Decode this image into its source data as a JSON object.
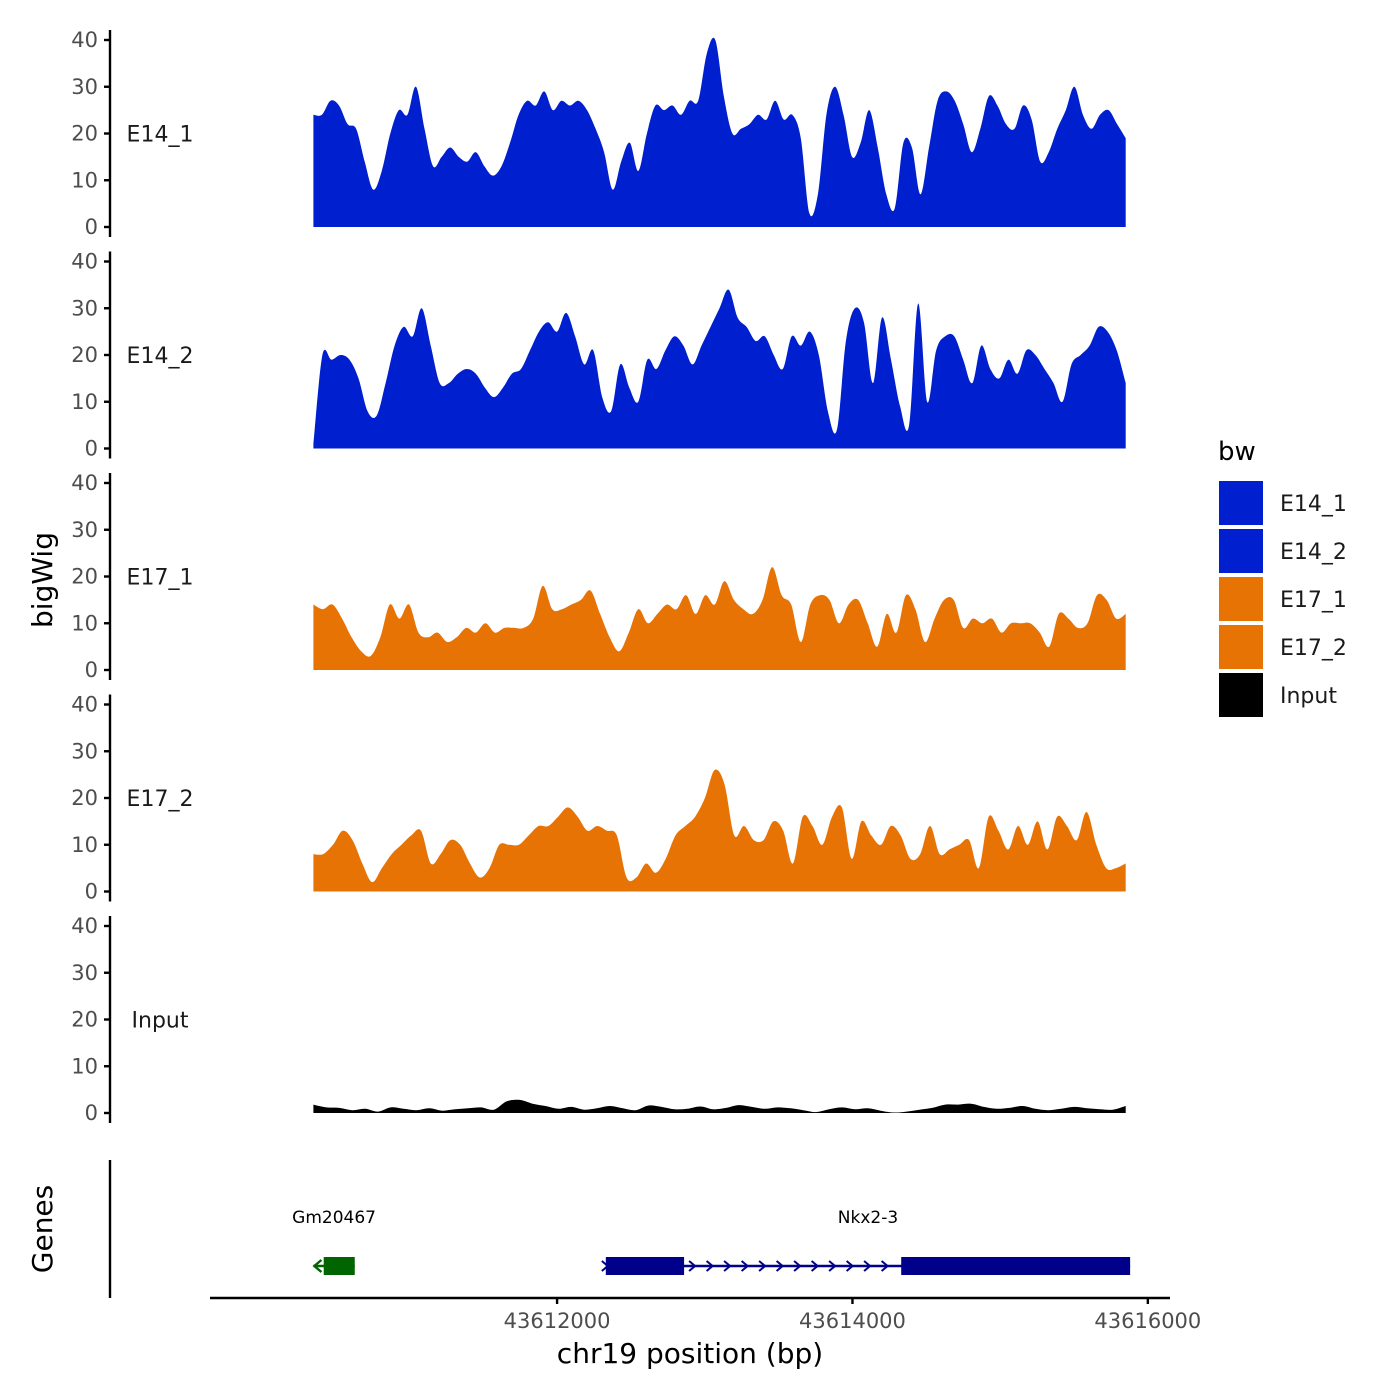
{
  "chart_data": {
    "type": "area",
    "ylabel": "bigWig",
    "xlabel": "chr19 position (bp)",
    "ylim": [
      0,
      40
    ],
    "y_ticks": [
      0,
      10,
      20,
      30,
      40
    ],
    "xlim": [
      43609650,
      43616150
    ],
    "x_ticks": [
      43612000,
      43614000,
      43616000
    ],
    "x_tick_labels": [
      "43612000",
      "43614000",
      "43616000"
    ],
    "x_start": 43610350,
    "x_end": 43615850,
    "legend": {
      "title": "bw",
      "position": "right",
      "entries": [
        {
          "label": "E14_1",
          "color": "#0020D0"
        },
        {
          "label": "E14_2",
          "color": "#0020D0"
        },
        {
          "label": "E17_1",
          "color": "#E87305"
        },
        {
          "label": "E17_2",
          "color": "#E87305"
        },
        {
          "label": "Input",
          "color": "#000000"
        }
      ]
    },
    "series": [
      {
        "name": "E14_1",
        "color": "#0020D0",
        "values": [
          24,
          24,
          27,
          26,
          22,
          21,
          14,
          8,
          12,
          20,
          25,
          24,
          30,
          21,
          13,
          15,
          17,
          15,
          14,
          16,
          13,
          11,
          13,
          18,
          24,
          27,
          26,
          29,
          25,
          27,
          26,
          27,
          25,
          21,
          16,
          8,
          14,
          18,
          12,
          20,
          26,
          25,
          26,
          24,
          27,
          27,
          37,
          40,
          28,
          20,
          21,
          22,
          24,
          23,
          27,
          23,
          24,
          19,
          3,
          7,
          24,
          30,
          24,
          15,
          18,
          25,
          17,
          7,
          4,
          18,
          17,
          7,
          17,
          27,
          29,
          27,
          22,
          16,
          21,
          28,
          26,
          22,
          21,
          26,
          23,
          14,
          16,
          21,
          25,
          30,
          24,
          21,
          24,
          25,
          22,
          19
        ]
      },
      {
        "name": "E14_2",
        "color": "#0020D0",
        "values": [
          1,
          20,
          19,
          20,
          19,
          15,
          8,
          7,
          14,
          22,
          26,
          24,
          30,
          22,
          14,
          14,
          16,
          17,
          16,
          13,
          11,
          13,
          16,
          17,
          21,
          25,
          27,
          25,
          29,
          24,
          18,
          21,
          11,
          8,
          18,
          13,
          10,
          19,
          17,
          21,
          24,
          22,
          18,
          22,
          26,
          30,
          34,
          28,
          26,
          23,
          24,
          20,
          17,
          24,
          22,
          25,
          20,
          8,
          4,
          23,
          30,
          27,
          14,
          28,
          19,
          9,
          5,
          31,
          10,
          21,
          24,
          24,
          19,
          14,
          22,
          17,
          15,
          19,
          16,
          21,
          20,
          17,
          14,
          10,
          18,
          20,
          22,
          26,
          25,
          21,
          14
        ]
      },
      {
        "name": "E17_1",
        "color": "#E87305",
        "values": [
          14,
          13,
          14,
          11,
          7,
          4,
          3,
          7,
          14,
          11,
          14,
          8,
          7,
          8,
          6,
          7,
          9,
          8,
          10,
          8,
          9,
          9,
          9,
          11,
          18,
          13,
          13,
          14,
          15,
          17,
          12,
          7,
          4,
          8,
          13,
          10,
          12,
          14,
          13,
          16,
          12,
          16,
          14,
          19,
          15,
          13,
          12,
          15,
          22,
          16,
          14,
          6,
          14,
          16,
          15,
          10,
          14,
          15,
          10,
          5,
          12,
          8,
          16,
          13,
          6,
          11,
          15,
          15,
          9,
          11,
          10,
          11,
          8,
          10,
          10,
          10,
          8,
          5,
          12,
          11,
          9,
          10,
          16,
          15,
          11,
          12
        ]
      },
      {
        "name": "E17_2",
        "color": "#E87305",
        "values": [
          8,
          8,
          10,
          13,
          11,
          6,
          2,
          5,
          8,
          10,
          12,
          13,
          6,
          8,
          11,
          10,
          6,
          3,
          5,
          10,
          10,
          10,
          12,
          14,
          14,
          16,
          18,
          16,
          13,
          14,
          13,
          12,
          3,
          3,
          6,
          4,
          7,
          12,
          14,
          16,
          20,
          26,
          23,
          12,
          14,
          11,
          11,
          15,
          13,
          6,
          16,
          14,
          10,
          16,
          18,
          7,
          15,
          12,
          10,
          14,
          12,
          7,
          8,
          14,
          8,
          9,
          10,
          11,
          5,
          16,
          13,
          9,
          14,
          10,
          15,
          9,
          16,
          14,
          11,
          17,
          10,
          5,
          5,
          6
        ]
      },
      {
        "name": "Input",
        "color": "#000000",
        "values": [
          1.8,
          1.2,
          1.1,
          0.6,
          0.9,
          0.3,
          1.2,
          0.9,
          0.6,
          1.0,
          0.5,
          0.8,
          1.0,
          1.2,
          0.7,
          2.5,
          2.8,
          2.0,
          1.5,
          0.9,
          1.3,
          0.7,
          1.0,
          1.5,
          1.0,
          0.6,
          1.6,
          1.3,
          0.8,
          0.9,
          1.4,
          0.8,
          1.1,
          1.7,
          1.3,
          0.9,
          1.2,
          1.0,
          0.6,
          0.2,
          0.8,
          1.2,
          0.8,
          1.0,
          0.5,
          0.1,
          0.3,
          0.7,
          1.1,
          1.8,
          1.8,
          2.0,
          1.3,
          0.9,
          1.1,
          1.5,
          0.9,
          0.6,
          0.9,
          1.3,
          1.0,
          0.8,
          0.7,
          1.5
        ]
      }
    ],
    "genes_track": {
      "label": "Genes",
      "genes": [
        {
          "name": "Gm20467",
          "start": 43610350,
          "end": 43610630,
          "cds_start": 43610420,
          "cds_end": 43610630,
          "strand": "-",
          "color": "#006400"
        },
        {
          "name": "Nkx2-3",
          "start": 43612330,
          "end": 43615880,
          "strand": "+",
          "color": "#00008B",
          "exons": [
            [
              43612330,
              43612860
            ],
            [
              43614330,
              43615880
            ]
          ]
        }
      ]
    }
  }
}
